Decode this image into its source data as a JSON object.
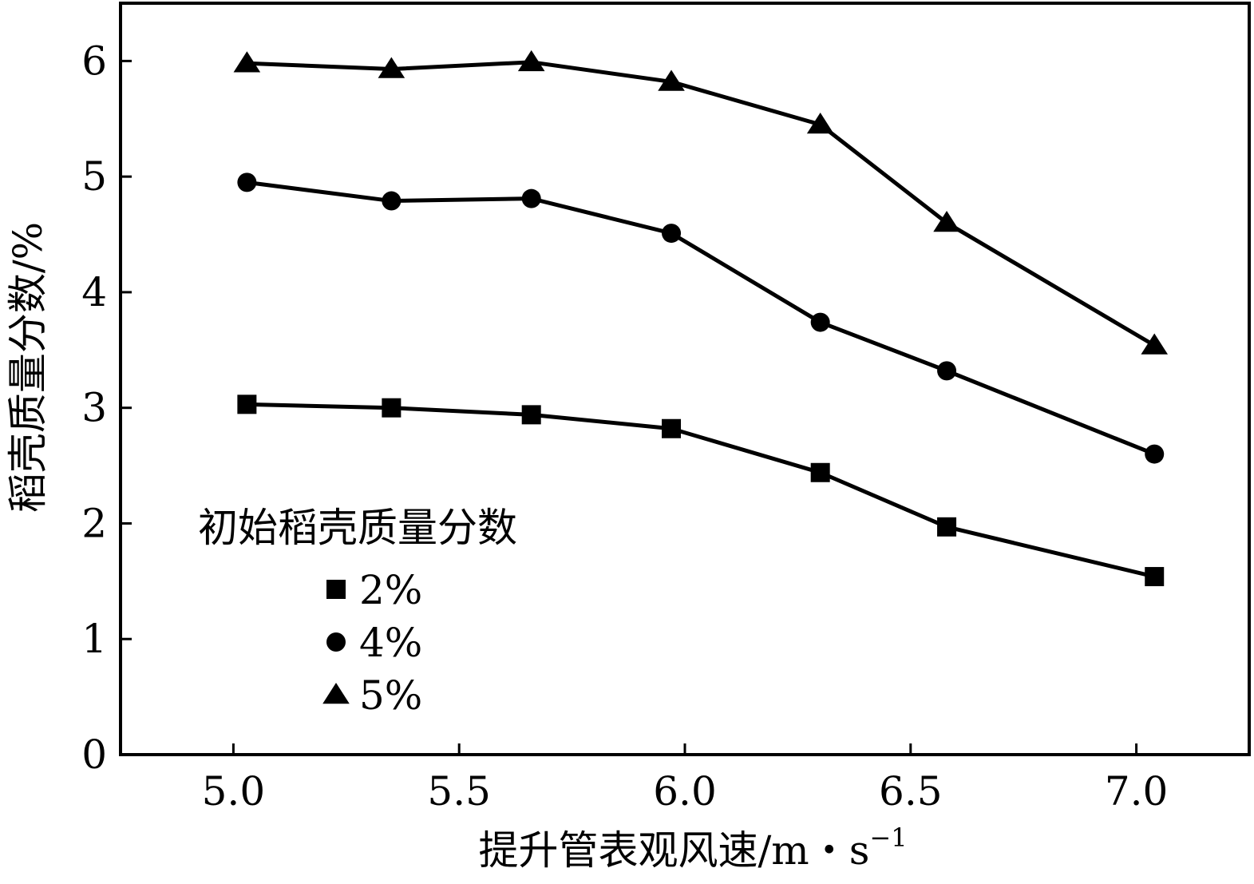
{
  "chart_data": {
    "type": "line",
    "xlabel": "提升管表观风速/m・s",
    "xlabel_superscript": "−1",
    "ylabel": "稻壳质量分数/%",
    "xlim": [
      4.75,
      7.25
    ],
    "ylim": [
      0,
      6.5
    ],
    "x_ticks": [
      "5.0",
      "5.5",
      "6.0",
      "6.5",
      "7.0"
    ],
    "x_tick_values": [
      5.0,
      5.5,
      6.0,
      6.5,
      7.0
    ],
    "y_ticks": [
      "0",
      "1",
      "2",
      "3",
      "4",
      "5",
      "6"
    ],
    "y_tick_values": [
      0,
      1,
      2,
      3,
      4,
      5,
      6
    ],
    "x": [
      5.03,
      5.35,
      5.66,
      5.97,
      6.3,
      6.58,
      7.04
    ],
    "legend_title": "初始稻壳质量分数",
    "legend_position": "lower-left",
    "grid": false,
    "series": [
      {
        "name": "2%",
        "marker": "square",
        "values": [
          3.03,
          3.0,
          2.94,
          2.82,
          2.44,
          1.97,
          1.54
        ]
      },
      {
        "name": "4%",
        "marker": "circle",
        "values": [
          4.95,
          4.79,
          4.81,
          4.51,
          3.74,
          3.32,
          2.6
        ]
      },
      {
        "name": "5%",
        "marker": "triangle",
        "values": [
          5.98,
          5.93,
          5.99,
          5.82,
          5.45,
          4.6,
          3.54
        ]
      }
    ]
  }
}
